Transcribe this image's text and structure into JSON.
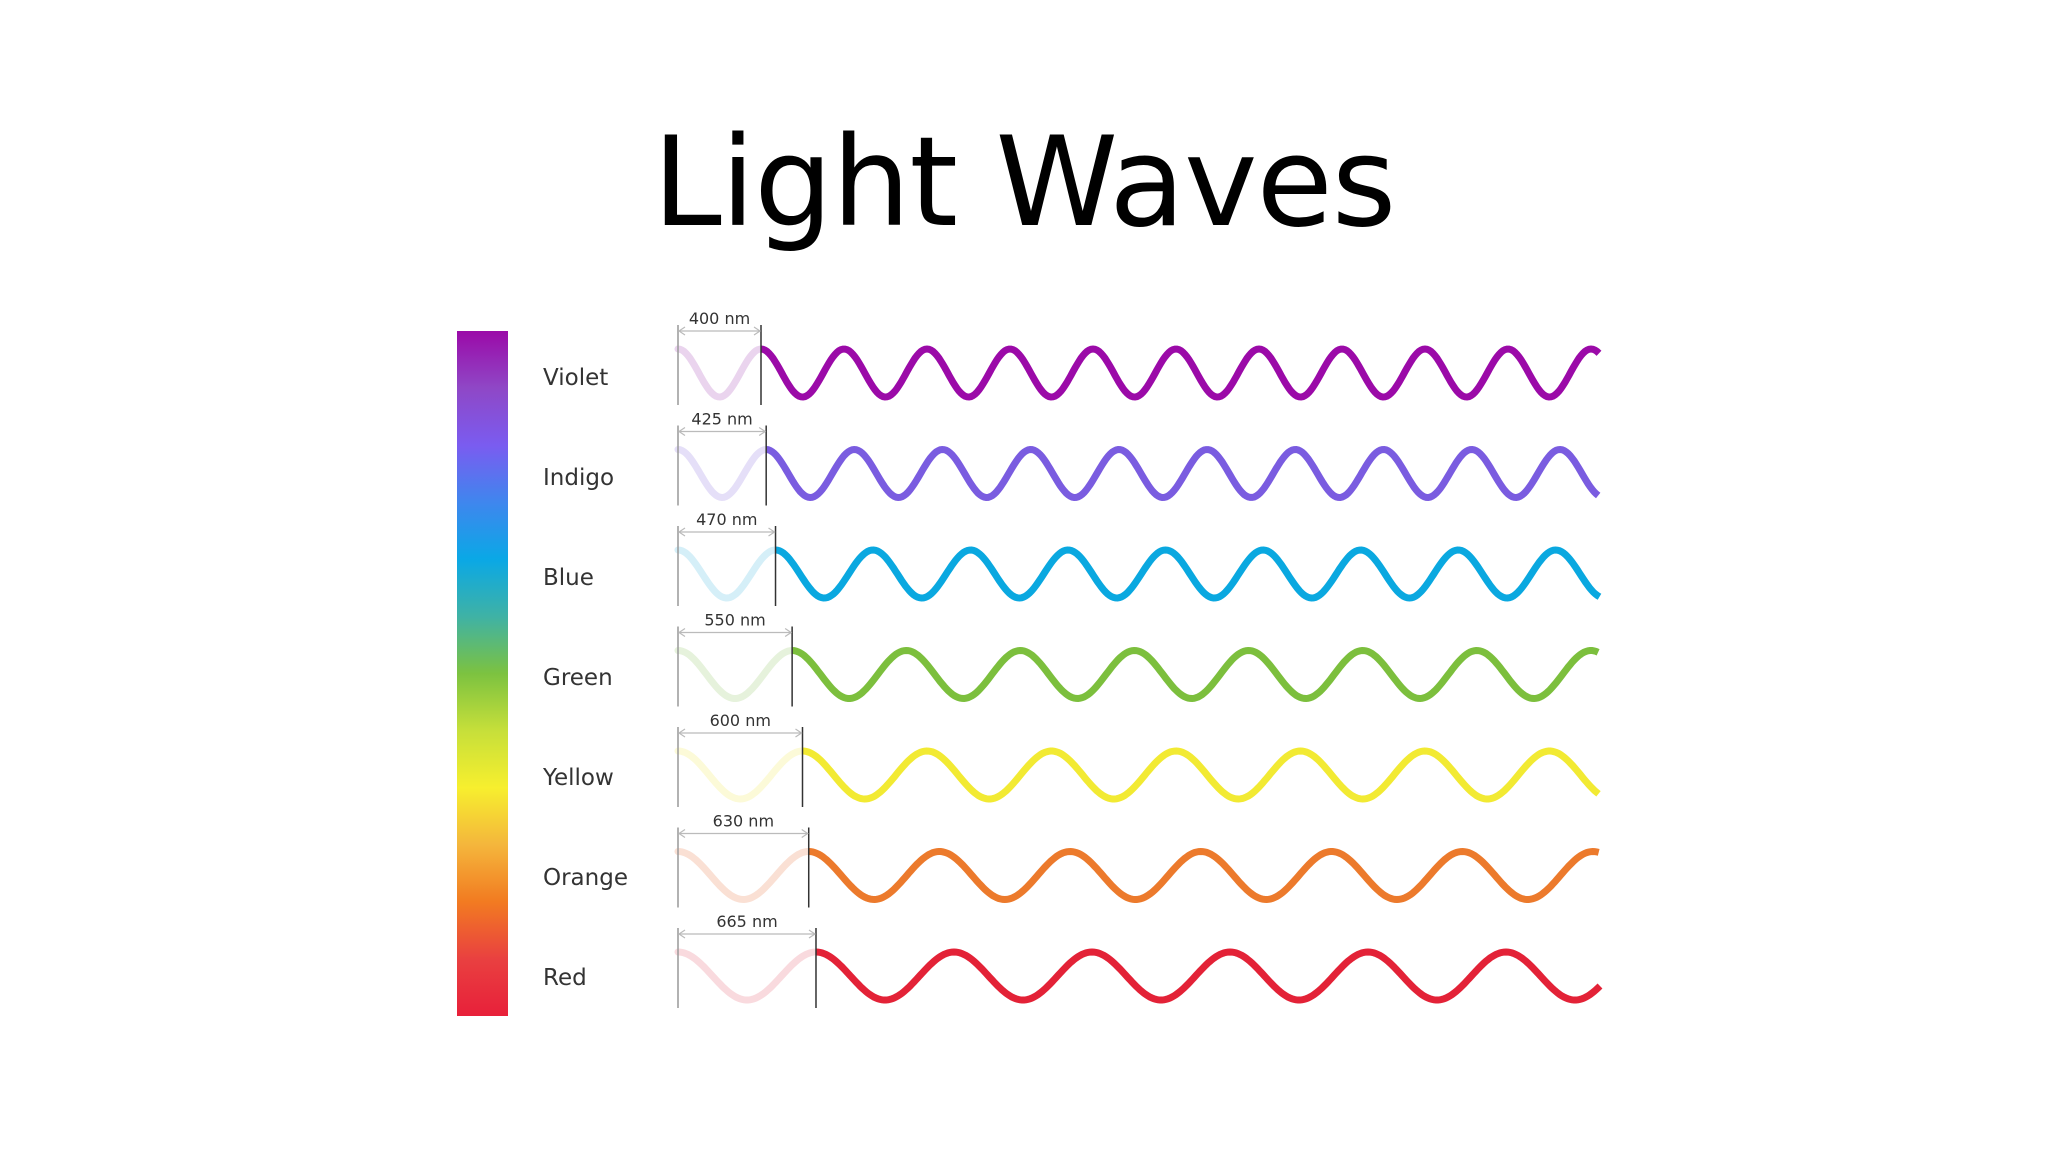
{
  "title": "Light Waves",
  "spectrum": {
    "gradient_colors": [
      "#9b0aa8",
      "#8f47c6",
      "#7a5cf0",
      "#3f86ee",
      "#0aa8e6",
      "#3fb2a5",
      "#7cc240",
      "#c6df3a",
      "#f7ef2e",
      "#f4b63c",
      "#f27b21",
      "#e94040",
      "#e8203a"
    ]
  },
  "colors": [
    {
      "name": "Violet",
      "wavelength_label": "400 nm",
      "wavelength_nm": 400,
      "hex": "#9b0aa8",
      "faded_hex": "#ead4ee"
    },
    {
      "name": "Indigo",
      "wavelength_label": "425 nm",
      "wavelength_nm": 425,
      "hex": "#7a5ce0",
      "faded_hex": "#e5dff8"
    },
    {
      "name": "Blue",
      "wavelength_label": "470 nm",
      "wavelength_nm": 470,
      "hex": "#0aa8e0",
      "faded_hex": "#d5eff8"
    },
    {
      "name": "Green",
      "wavelength_label": "550 nm",
      "wavelength_nm": 550,
      "hex": "#7cbf3d",
      "faded_hex": "#e6f2dc"
    },
    {
      "name": "Yellow",
      "wavelength_label": "600 nm",
      "wavelength_nm": 600,
      "hex": "#f2ea33",
      "faded_hex": "#fcfad8"
    },
    {
      "name": "Orange",
      "wavelength_label": "630 nm",
      "wavelength_nm": 630,
      "hex": "#ec7a2c",
      "faded_hex": "#fae0d4"
    },
    {
      "name": "Red",
      "wavelength_label": "665 nm",
      "wavelength_nm": 665,
      "hex": "#e32237",
      "faded_hex": "#f9dade"
    }
  ]
}
